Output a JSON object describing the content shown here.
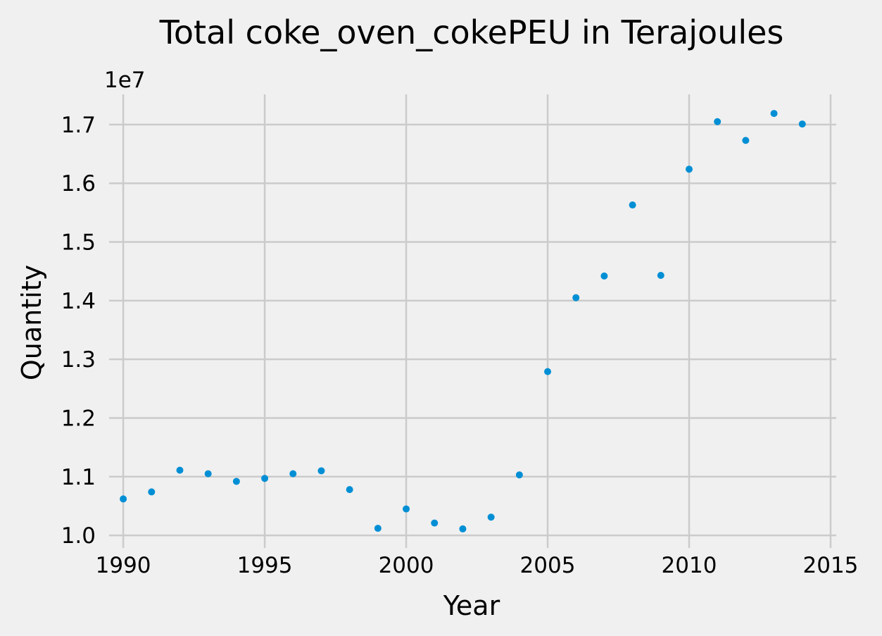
{
  "chart_data": {
    "type": "scatter",
    "title": "Total coke_oven_cokePEU in Terajoules",
    "xlabel": "Year",
    "ylabel": "Quantity",
    "y_offset_label": "1e7",
    "y_scale": 10000000,
    "xlim": [
      1989.5,
      2015.2
    ],
    "ylim": [
      0.9785,
      1.7515
    ],
    "grid": true,
    "marker_color": "#008fd5",
    "x_ticks": [
      1990,
      1995,
      2000,
      2005,
      2010,
      2015
    ],
    "x_tick_labels": [
      "1990",
      "1995",
      "2000",
      "2005",
      "2010",
      "2015"
    ],
    "y_ticks": [
      1.0,
      1.1,
      1.2,
      1.3,
      1.4,
      1.5,
      1.6,
      1.7
    ],
    "y_tick_labels": [
      "1.0",
      "1.1",
      "1.2",
      "1.3",
      "1.4",
      "1.5",
      "1.6",
      "1.7"
    ],
    "x": [
      1990,
      1991,
      1992,
      1993,
      1994,
      1995,
      1996,
      1997,
      1998,
      1999,
      2000,
      2001,
      2002,
      2003,
      2004,
      2005,
      2006,
      2007,
      2008,
      2009,
      2010,
      2011,
      2012,
      2013,
      2014
    ],
    "y": [
      10620000,
      10740000,
      11110000,
      11050000,
      10920000,
      10970000,
      11050000,
      11100000,
      10780000,
      10120000,
      10450000,
      10210000,
      10110000,
      10310000,
      11030000,
      12790000,
      14050000,
      14420000,
      15630000,
      14430000,
      16240000,
      17050000,
      16730000,
      17190000,
      17010000
    ]
  }
}
